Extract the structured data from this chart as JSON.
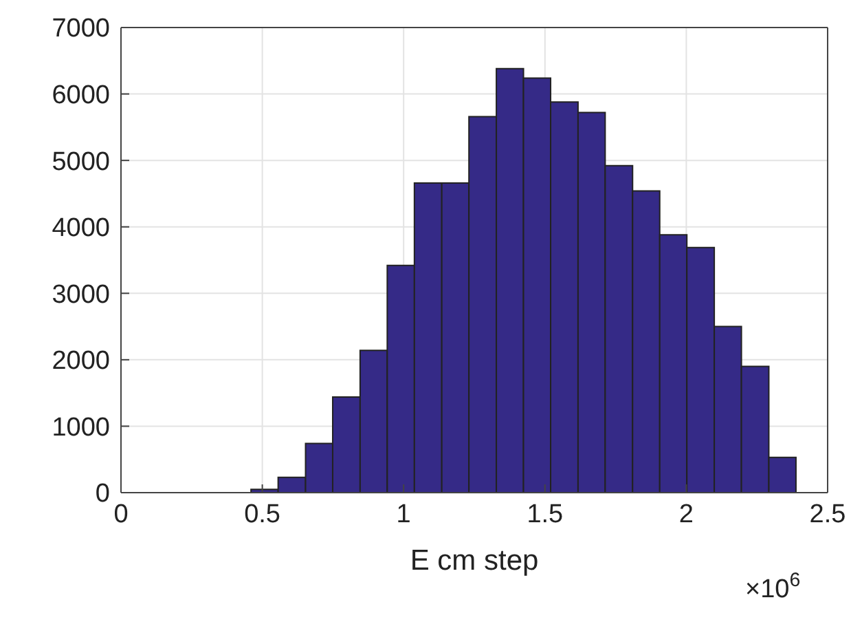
{
  "chart_data": {
    "type": "histogram",
    "xlabel": "E cm step",
    "annotations": [
      "×10$^{6}$"
    ],
    "bins": [
      0.46,
      0.556,
      0.653,
      0.749,
      0.846,
      0.942,
      1.038,
      1.135,
      1.231,
      1.328,
      1.424,
      1.52,
      1.617,
      1.713,
      1.81,
      1.906,
      2.002,
      2.099,
      2.195,
      2.292,
      2.388
    ],
    "values": [
      50,
      230,
      740,
      1440,
      2140,
      3420,
      4660,
      4660,
      5660,
      6380,
      6240,
      5880,
      5720,
      4920,
      4540,
      3880,
      3690,
      2500,
      1900,
      530
    ],
    "color": "#352a87",
    "xlim": [
      0,
      2.5
    ],
    "xticks": [
      0,
      0.5,
      1,
      1.5,
      2,
      2.5
    ],
    "ylim": [
      0,
      7000
    ],
    "yticks": [
      0,
      1000,
      2000,
      3000,
      4000,
      5000,
      6000,
      7000
    ],
    "grid": true
  }
}
